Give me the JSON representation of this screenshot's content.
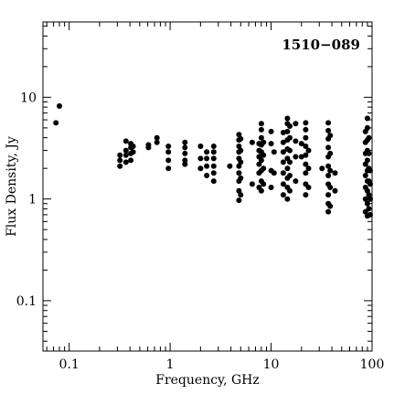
{
  "chart_data": {
    "type": "scatter",
    "title": "1510−089",
    "xlabel": "Frequency, GHz",
    "ylabel": "Flux Density, Jy",
    "x_scale": "log",
    "y_scale": "log",
    "xlim": [
      0.055,
      100
    ],
    "ylim": [
      0.032,
      55
    ],
    "grid": false,
    "x_ticks": [
      {
        "value": 0.1,
        "label": "0.1"
      },
      {
        "value": 1,
        "label": "1"
      },
      {
        "value": 10,
        "label": "10"
      },
      {
        "value": 100,
        "label": "100"
      }
    ],
    "y_ticks": [
      {
        "value": 0.1,
        "label": "0.1"
      },
      {
        "value": 1,
        "label": "1"
      },
      {
        "value": 10,
        "label": "10"
      }
    ],
    "points": [
      {
        "x": 0.074,
        "y": 5.6
      },
      {
        "x": 0.08,
        "y": 8.2
      },
      {
        "x": 0.318,
        "y": 2.1
      },
      {
        "x": 0.318,
        "y": 2.4
      },
      {
        "x": 0.318,
        "y": 2.7
      },
      {
        "x": 0.365,
        "y": 2.3
      },
      {
        "x": 0.365,
        "y": 2.7
      },
      {
        "x": 0.365,
        "y": 3.0
      },
      {
        "x": 0.365,
        "y": 3.7
      },
      {
        "x": 0.408,
        "y": 2.4
      },
      {
        "x": 0.408,
        "y": 2.8
      },
      {
        "x": 0.408,
        "y": 3.2
      },
      {
        "x": 0.408,
        "y": 3.5
      },
      {
        "x": 0.43,
        "y": 2.9
      },
      {
        "x": 0.43,
        "y": 3.3
      },
      {
        "x": 0.61,
        "y": 3.2
      },
      {
        "x": 0.61,
        "y": 3.4
      },
      {
        "x": 0.74,
        "y": 3.6
      },
      {
        "x": 0.74,
        "y": 4.0
      },
      {
        "x": 0.96,
        "y": 2.0
      },
      {
        "x": 0.96,
        "y": 2.4
      },
      {
        "x": 0.96,
        "y": 2.9
      },
      {
        "x": 0.96,
        "y": 3.3
      },
      {
        "x": 1.4,
        "y": 2.2
      },
      {
        "x": 1.4,
        "y": 2.4
      },
      {
        "x": 1.4,
        "y": 2.8
      },
      {
        "x": 1.4,
        "y": 3.2
      },
      {
        "x": 1.4,
        "y": 3.6
      },
      {
        "x": 2.0,
        "y": 2.0
      },
      {
        "x": 2.0,
        "y": 2.5
      },
      {
        "x": 2.0,
        "y": 3.3
      },
      {
        "x": 2.3,
        "y": 1.7
      },
      {
        "x": 2.3,
        "y": 2.1
      },
      {
        "x": 2.3,
        "y": 2.5
      },
      {
        "x": 2.3,
        "y": 2.9
      },
      {
        "x": 2.7,
        "y": 1.5
      },
      {
        "x": 2.7,
        "y": 1.8
      },
      {
        "x": 2.7,
        "y": 2.1
      },
      {
        "x": 2.7,
        "y": 2.5
      },
      {
        "x": 2.7,
        "y": 2.9
      },
      {
        "x": 2.7,
        "y": 3.3
      },
      {
        "x": 3.9,
        "y": 2.1
      },
      {
        "x": 4.8,
        "y": 0.97
      },
      {
        "x": 4.8,
        "y": 1.2
      },
      {
        "x": 4.8,
        "y": 1.5
      },
      {
        "x": 4.8,
        "y": 1.8
      },
      {
        "x": 4.8,
        "y": 2.1
      },
      {
        "x": 4.8,
        "y": 2.5
      },
      {
        "x": 4.8,
        "y": 2.9
      },
      {
        "x": 4.8,
        "y": 3.3
      },
      {
        "x": 4.8,
        "y": 3.8
      },
      {
        "x": 4.8,
        "y": 4.3
      },
      {
        "x": 5.0,
        "y": 1.1
      },
      {
        "x": 5.0,
        "y": 1.6
      },
      {
        "x": 5.0,
        "y": 2.3
      },
      {
        "x": 5.0,
        "y": 3.0
      },
      {
        "x": 5.0,
        "y": 3.9
      },
      {
        "x": 6.5,
        "y": 1.4
      },
      {
        "x": 6.5,
        "y": 3.6
      },
      {
        "x": 7.6,
        "y": 1.3
      },
      {
        "x": 7.6,
        "y": 1.8
      },
      {
        "x": 7.6,
        "y": 2.2
      },
      {
        "x": 7.6,
        "y": 2.6
      },
      {
        "x": 7.6,
        "y": 3.0
      },
      {
        "x": 7.6,
        "y": 3.5
      },
      {
        "x": 8.0,
        "y": 1.2
      },
      {
        "x": 8.0,
        "y": 1.5
      },
      {
        "x": 8.0,
        "y": 1.9
      },
      {
        "x": 8.0,
        "y": 2.4
      },
      {
        "x": 8.0,
        "y": 2.9
      },
      {
        "x": 8.0,
        "y": 3.4
      },
      {
        "x": 8.0,
        "y": 4.0
      },
      {
        "x": 8.0,
        "y": 4.8
      },
      {
        "x": 8.0,
        "y": 5.5
      },
      {
        "x": 8.4,
        "y": 1.4
      },
      {
        "x": 8.4,
        "y": 2.0
      },
      {
        "x": 8.4,
        "y": 2.7
      },
      {
        "x": 8.4,
        "y": 3.6
      },
      {
        "x": 10.0,
        "y": 1.3
      },
      {
        "x": 10.0,
        "y": 1.9
      },
      {
        "x": 10.0,
        "y": 3.5
      },
      {
        "x": 10.0,
        "y": 4.6
      },
      {
        "x": 10.7,
        "y": 1.8
      },
      {
        "x": 10.7,
        "y": 2.9
      },
      {
        "x": 13.2,
        "y": 1.1
      },
      {
        "x": 13.2,
        "y": 1.4
      },
      {
        "x": 13.2,
        "y": 1.8
      },
      {
        "x": 13.2,
        "y": 2.3
      },
      {
        "x": 13.2,
        "y": 2.9
      },
      {
        "x": 13.2,
        "y": 3.6
      },
      {
        "x": 13.2,
        "y": 4.5
      },
      {
        "x": 14.5,
        "y": 1.0
      },
      {
        "x": 14.5,
        "y": 1.3
      },
      {
        "x": 14.5,
        "y": 1.6
      },
      {
        "x": 14.5,
        "y": 2.0
      },
      {
        "x": 14.5,
        "y": 2.5
      },
      {
        "x": 14.5,
        "y": 3.1
      },
      {
        "x": 14.5,
        "y": 3.8
      },
      {
        "x": 14.5,
        "y": 4.6
      },
      {
        "x": 14.5,
        "y": 5.5
      },
      {
        "x": 14.5,
        "y": 6.2
      },
      {
        "x": 15.3,
        "y": 1.2
      },
      {
        "x": 15.3,
        "y": 1.7
      },
      {
        "x": 15.3,
        "y": 2.3
      },
      {
        "x": 15.3,
        "y": 3.0
      },
      {
        "x": 15.3,
        "y": 4.0
      },
      {
        "x": 15.3,
        "y": 5.2
      },
      {
        "x": 17.5,
        "y": 1.5
      },
      {
        "x": 17.5,
        "y": 2.6
      },
      {
        "x": 17.5,
        "y": 3.7
      },
      {
        "x": 17.5,
        "y": 5.5
      },
      {
        "x": 20.0,
        "y": 2.6
      },
      {
        "x": 20.0,
        "y": 3.5
      },
      {
        "x": 22.0,
        "y": 1.1
      },
      {
        "x": 22.0,
        "y": 1.4
      },
      {
        "x": 22.0,
        "y": 1.8
      },
      {
        "x": 22.0,
        "y": 2.2
      },
      {
        "x": 22.0,
        "y": 2.7
      },
      {
        "x": 22.0,
        "y": 3.3
      },
      {
        "x": 22.0,
        "y": 4.0
      },
      {
        "x": 22.0,
        "y": 4.8
      },
      {
        "x": 22.0,
        "y": 5.6
      },
      {
        "x": 23.5,
        "y": 1.3
      },
      {
        "x": 23.5,
        "y": 2.0
      },
      {
        "x": 23.5,
        "y": 3.0
      },
      {
        "x": 32.0,
        "y": 2.0
      },
      {
        "x": 36.8,
        "y": 0.75
      },
      {
        "x": 36.8,
        "y": 0.9
      },
      {
        "x": 36.8,
        "y": 1.1
      },
      {
        "x": 36.8,
        "y": 1.4
      },
      {
        "x": 36.8,
        "y": 1.7
      },
      {
        "x": 36.8,
        "y": 2.1
      },
      {
        "x": 36.8,
        "y": 2.6
      },
      {
        "x": 36.8,
        "y": 3.2
      },
      {
        "x": 36.8,
        "y": 3.9
      },
      {
        "x": 36.8,
        "y": 4.7
      },
      {
        "x": 36.8,
        "y": 5.6
      },
      {
        "x": 38.5,
        "y": 0.85
      },
      {
        "x": 38.5,
        "y": 1.3
      },
      {
        "x": 38.5,
        "y": 1.9
      },
      {
        "x": 38.5,
        "y": 2.8
      },
      {
        "x": 38.5,
        "y": 4.2
      },
      {
        "x": 43.0,
        "y": 1.2
      },
      {
        "x": 43.0,
        "y": 1.8
      },
      {
        "x": 86.0,
        "y": 0.75
      },
      {
        "x": 86.0,
        "y": 1.0
      },
      {
        "x": 86.0,
        "y": 1.3
      },
      {
        "x": 86.0,
        "y": 1.7
      },
      {
        "x": 86.0,
        "y": 2.2
      },
      {
        "x": 86.0,
        "y": 2.8
      },
      {
        "x": 86.0,
        "y": 3.6
      },
      {
        "x": 86.0,
        "y": 4.6
      },
      {
        "x": 90.0,
        "y": 0.68
      },
      {
        "x": 90.0,
        "y": 0.9
      },
      {
        "x": 90.0,
        "y": 1.2
      },
      {
        "x": 90.0,
        "y": 1.5
      },
      {
        "x": 90.0,
        "y": 1.9
      },
      {
        "x": 90.0,
        "y": 2.4
      },
      {
        "x": 90.0,
        "y": 3.0
      },
      {
        "x": 90.0,
        "y": 3.8
      },
      {
        "x": 90.0,
        "y": 5.0
      },
      {
        "x": 90.0,
        "y": 6.2
      },
      {
        "x": 93.0,
        "y": 0.8
      },
      {
        "x": 93.0,
        "y": 1.1
      },
      {
        "x": 93.0,
        "y": 1.5
      },
      {
        "x": 93.0,
        "y": 2.0
      },
      {
        "x": 93.0,
        "y": 2.8
      },
      {
        "x": 93.0,
        "y": 4.0
      },
      {
        "x": 96.0,
        "y": 0.7
      },
      {
        "x": 96.0,
        "y": 1.0
      },
      {
        "x": 96.0,
        "y": 1.4
      },
      {
        "x": 96.0,
        "y": 1.9
      }
    ]
  }
}
